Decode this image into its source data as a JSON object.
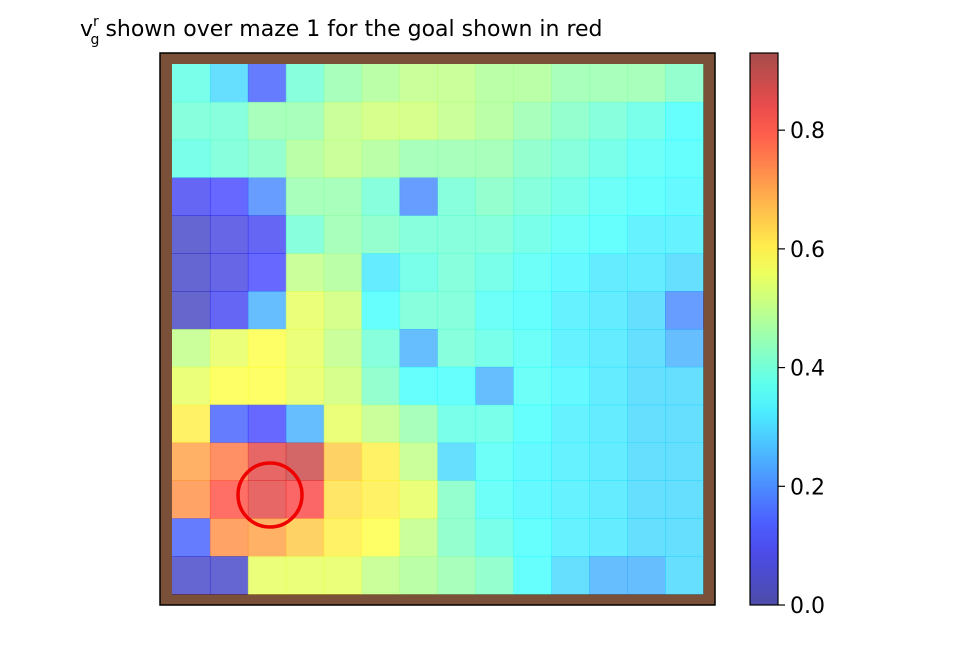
{
  "chart_data": {
    "type": "heatmap",
    "title_symbol": "v",
    "title_superscript": "r",
    "title_subscript": "g",
    "title": "shown over maze 1 for the goal shown in red",
    "colormap": "jet",
    "alpha": 0.6,
    "values": [
      [
        0.38,
        0.3,
        0.15,
        0.4,
        0.45,
        0.48,
        0.5,
        0.5,
        0.48,
        0.48,
        0.45,
        0.45,
        0.45,
        0.42
      ],
      [
        0.4,
        0.4,
        0.45,
        0.45,
        0.5,
        0.52,
        0.52,
        0.5,
        0.48,
        0.45,
        0.42,
        0.4,
        0.38,
        0.35
      ],
      [
        0.38,
        0.4,
        0.42,
        0.48,
        0.5,
        0.48,
        0.45,
        0.45,
        0.45,
        0.42,
        0.4,
        0.38,
        0.36,
        0.35
      ],
      [
        0.1,
        0.12,
        0.2,
        0.45,
        0.45,
        0.4,
        0.2,
        0.4,
        0.42,
        0.4,
        0.38,
        0.36,
        0.35,
        0.34
      ],
      [
        0.05,
        0.08,
        0.1,
        0.4,
        0.45,
        0.42,
        0.4,
        0.4,
        0.4,
        0.38,
        0.36,
        0.35,
        0.33,
        0.33
      ],
      [
        0.05,
        0.08,
        0.12,
        0.5,
        0.48,
        0.32,
        0.38,
        0.4,
        0.38,
        0.36,
        0.34,
        0.32,
        0.32,
        0.3
      ],
      [
        0.04,
        0.1,
        0.25,
        0.55,
        0.52,
        0.35,
        0.4,
        0.4,
        0.36,
        0.35,
        0.33,
        0.32,
        0.3,
        0.2
      ],
      [
        0.5,
        0.55,
        0.58,
        0.55,
        0.5,
        0.4,
        0.25,
        0.4,
        0.38,
        0.36,
        0.33,
        0.32,
        0.3,
        0.25
      ],
      [
        0.55,
        0.58,
        0.58,
        0.55,
        0.52,
        0.42,
        0.35,
        0.35,
        0.25,
        0.36,
        0.34,
        0.32,
        0.3,
        0.3
      ],
      [
        0.6,
        0.15,
        0.12,
        0.25,
        0.55,
        0.5,
        0.45,
        0.38,
        0.38,
        0.35,
        0.33,
        0.32,
        0.3,
        0.3
      ],
      [
        0.7,
        0.75,
        0.85,
        0.88,
        0.65,
        0.6,
        0.5,
        0.3,
        0.36,
        0.34,
        0.33,
        0.32,
        0.3,
        0.3
      ],
      [
        0.72,
        0.8,
        0.85,
        0.82,
        0.62,
        0.6,
        0.55,
        0.42,
        0.36,
        0.34,
        0.33,
        0.32,
        0.3,
        0.3
      ],
      [
        0.15,
        0.72,
        0.7,
        0.65,
        0.6,
        0.58,
        0.5,
        0.42,
        0.38,
        0.35,
        0.33,
        0.32,
        0.3,
        0.3
      ],
      [
        0.05,
        0.05,
        0.55,
        0.55,
        0.55,
        0.5,
        0.48,
        0.45,
        0.42,
        0.35,
        0.3,
        0.25,
        0.25,
        0.3
      ]
    ],
    "ylim": [
      0,
      0.93
    ],
    "yticks": [
      {
        "value": 0,
        "label": "0.0"
      },
      0.2,
      0.4,
      0.6,
      0.8
    ]
  }
}
